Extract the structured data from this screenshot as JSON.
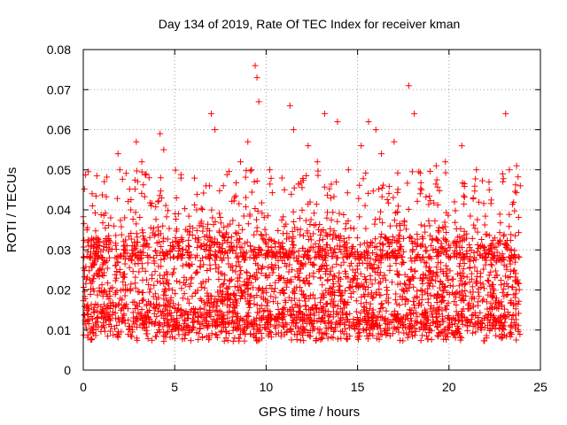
{
  "chart_data": {
    "type": "scatter",
    "title": "Day 134 of 2019, Rate Of TEC Index for receiver kman",
    "xlabel": "GPS time / hours",
    "ylabel": "ROTI / TECUs",
    "xlim": [
      0,
      25
    ],
    "ylim": [
      0,
      0.08
    ],
    "xticks": [
      0,
      5,
      10,
      15,
      20,
      25
    ],
    "xtick_labels": [
      "0",
      "5",
      "10",
      "15",
      "20",
      "25"
    ],
    "yticks": [
      0,
      0.01,
      0.02,
      0.03,
      0.04,
      0.05,
      0.06,
      0.07,
      0.08
    ],
    "ytick_labels": [
      "0",
      "0.01",
      "0.02",
      "0.03",
      "0.04",
      "0.05",
      "0.06",
      "0.07",
      "0.08"
    ],
    "grid": true,
    "marker": "+",
    "color": "#ff0000",
    "series": [
      {
        "name": "ROTI",
        "x": [
          0.2,
          0.5,
          0.7,
          1.1,
          1.5,
          1.9,
          2.0,
          2.6,
          2.9,
          3.2,
          3.6,
          4.2,
          4.4,
          5.2,
          6.2,
          6.9,
          7.0,
          7.2,
          7.9,
          8.6,
          9.0,
          9.2,
          9.4,
          9.5,
          9.6,
          10.2,
          11.0,
          11.3,
          11.5,
          12.3,
          12.8,
          13.2,
          13.9,
          14.5,
          15.2,
          15.6,
          16.0,
          16.3,
          17.0,
          17.8,
          18.1,
          18.5,
          19.3,
          19.8,
          20.3,
          20.7,
          21.5,
          22.2,
          23.1,
          23.3,
          23.7,
          23.9
        ],
        "y": [
          0.035,
          0.041,
          0.033,
          0.03,
          0.038,
          0.054,
          0.05,
          0.04,
          0.057,
          0.052,
          0.048,
          0.059,
          0.055,
          0.039,
          0.04,
          0.046,
          0.064,
          0.06,
          0.036,
          0.052,
          0.057,
          0.05,
          0.076,
          0.073,
          0.067,
          0.05,
          0.045,
          0.066,
          0.06,
          0.056,
          0.052,
          0.064,
          0.062,
          0.05,
          0.056,
          0.062,
          0.06,
          0.054,
          0.057,
          0.071,
          0.064,
          0.045,
          0.051,
          0.052,
          0.042,
          0.056,
          0.05,
          0.045,
          0.064,
          0.05,
          0.051,
          0.046
        ]
      }
    ],
    "baseline_band": {
      "description": "dense band of points",
      "y_range": [
        0.004,
        0.03
      ]
    }
  }
}
